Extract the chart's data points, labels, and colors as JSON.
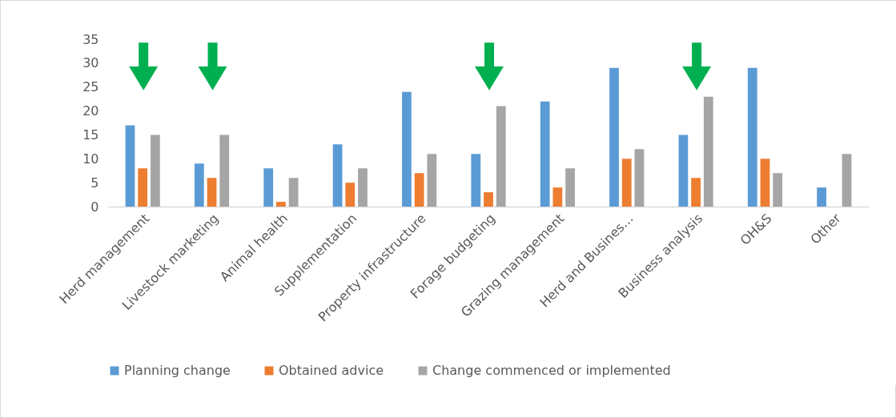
{
  "chart_data": {
    "type": "bar",
    "categories": [
      "Herd management",
      "Livestock marketing",
      "Animal health",
      "Supplementation",
      "Property infrastructure",
      "Forage budgeting",
      "Grazing management",
      "Herd and Busines…",
      "Business analysis",
      "OH&S",
      "Other"
    ],
    "series": [
      {
        "name": "Planning change",
        "color": "#5b9bd5",
        "values": [
          17,
          9,
          8,
          13,
          24,
          11,
          22,
          29,
          15,
          29,
          4
        ]
      },
      {
        "name": "Obtained advice",
        "color": "#ed7d31",
        "values": [
          8,
          6,
          1,
          5,
          7,
          3,
          4,
          10,
          6,
          10,
          0
        ]
      },
      {
        "name": "Change commenced or implemented",
        "color": "#a5a5a5",
        "values": [
          15,
          15,
          6,
          8,
          11,
          21,
          8,
          12,
          23,
          7,
          11
        ]
      }
    ],
    "ylim": [
      0,
      35
    ],
    "yticks": [
      0,
      5,
      10,
      15,
      20,
      25,
      30,
      35
    ],
    "grid": false,
    "legend": "bottom"
  }
}
